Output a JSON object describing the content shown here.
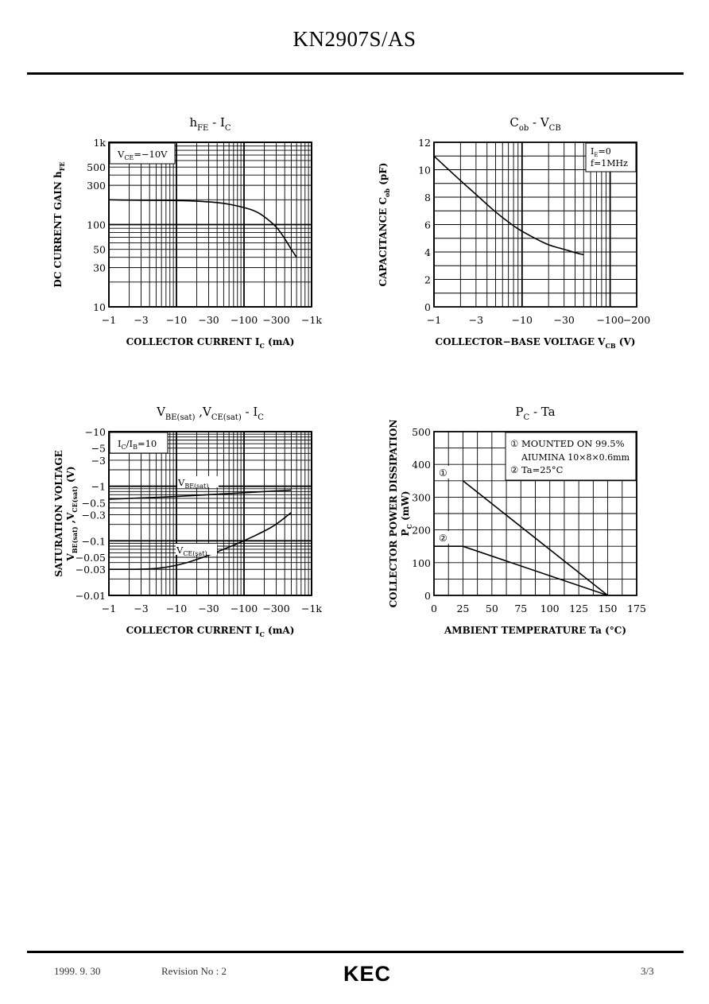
{
  "document": {
    "title": "KN2907S/AS",
    "footer": {
      "date": "1999. 9. 30",
      "revision": "Revision No : 2",
      "page": "3/3",
      "logo_text": "KEC"
    }
  },
  "chart_data": [
    {
      "id": "hfe",
      "type": "line",
      "title": {
        "main": "h",
        "sub": "FE",
        "rest": " - I",
        "sub2": "C"
      },
      "xlabel": {
        "main": "COLLECTOR  CURRENT  I",
        "sub": "C",
        "rest": "  (mA)"
      },
      "ylabel": {
        "main": "DC  CURRENT  GAIN  h",
        "sub": "FE",
        "rest": ""
      },
      "x_scale": "log",
      "y_scale": "log",
      "xlim": [
        -1,
        -1000
      ],
      "ylim": [
        10,
        1000
      ],
      "xticks": [
        {
          "v": 1,
          "l": "−1"
        },
        {
          "v": 3,
          "l": "−3"
        },
        {
          "v": 10,
          "l": "−10"
        },
        {
          "v": 30,
          "l": "−30"
        },
        {
          "v": 100,
          "l": "−100"
        },
        {
          "v": 300,
          "l": "−300"
        },
        {
          "v": 1000,
          "l": "−1k"
        }
      ],
      "yticks": [
        {
          "v": 10,
          "l": "10"
        },
        {
          "v": 30,
          "l": "30"
        },
        {
          "v": 50,
          "l": "50"
        },
        {
          "v": 100,
          "l": "100"
        },
        {
          "v": 300,
          "l": "300"
        },
        {
          "v": 500,
          "l": "500"
        },
        {
          "v": 1000,
          "l": "1k"
        }
      ],
      "annotations": [
        {
          "main": "V",
          "sub": "CE",
          "rest": "=−10V"
        }
      ],
      "series": [
        {
          "x": [
            1,
            2,
            5,
            10,
            20,
            50,
            100,
            150,
            200,
            300,
            400,
            500,
            600
          ],
          "y": [
            200,
            198,
            197,
            196,
            193,
            183,
            162,
            145,
            125,
            95,
            68,
            50,
            40
          ]
        }
      ]
    },
    {
      "id": "cob",
      "type": "line",
      "title": {
        "main": "C",
        "sub": "ob",
        "rest": " - V",
        "sub2": "CB"
      },
      "xlabel": {
        "main": "COLLECTOR−BASE  VOLTAGE  V",
        "sub": "CB",
        "rest": "  (V)"
      },
      "ylabel": {
        "main": "CAPACITANCE  C",
        "sub": "ob",
        "rest": "  (pF)"
      },
      "x_scale": "log",
      "y_scale": "linear",
      "xlim": [
        -1,
        -200
      ],
      "ylim": [
        0,
        12
      ],
      "xticks": [
        {
          "v": 1,
          "l": "−1"
        },
        {
          "v": 3,
          "l": "−3"
        },
        {
          "v": 10,
          "l": "−10"
        },
        {
          "v": 30,
          "l": "−30"
        },
        {
          "v": 100,
          "l": "−100"
        },
        {
          "v": 200,
          "l": "−200"
        }
      ],
      "yticks": [
        {
          "v": 0,
          "l": "0"
        },
        {
          "v": 2,
          "l": "2"
        },
        {
          "v": 4,
          "l": "4"
        },
        {
          "v": 6,
          "l": "6"
        },
        {
          "v": 8,
          "l": "8"
        },
        {
          "v": 10,
          "l": "10"
        },
        {
          "v": 12,
          "l": "12"
        }
      ],
      "annotations": [
        {
          "main": "I",
          "sub": "E",
          "rest": "=0"
        },
        {
          "main": "f=1MHz",
          "sub": "",
          "rest": ""
        }
      ],
      "series": [
        {
          "x": [
            1,
            2,
            3,
            5,
            8,
            10,
            15,
            20,
            30,
            40,
            50
          ],
          "y": [
            11.0,
            9.2,
            8.2,
            6.9,
            5.9,
            5.5,
            4.9,
            4.5,
            4.2,
            3.95,
            3.8
          ]
        }
      ]
    },
    {
      "id": "vsat",
      "type": "line",
      "title": {
        "main": "V",
        "sub": "BE(sat)",
        "rest": " ,V",
        "sub2": "CE(sat)",
        "rest2": "  -  I",
        "sub3": "C"
      },
      "xlabel": {
        "main": "COLLECTOR  CURRENT  I",
        "sub": "C",
        "rest": "  (mA)"
      },
      "ylabel_lines": [
        "SATURATION  VOLTAGE",
        "V_BE(sat) ,V_CE(sat)  (V)"
      ],
      "ylabel": {
        "line1": "SATURATION  VOLTAGE",
        "l2_v1": "V",
        "l2_s1": "BE(sat)",
        "l2_mid": " ,V",
        "l2_s2": "CE(sat)",
        "l2_end": "  (V)"
      },
      "x_scale": "log",
      "y_scale": "log",
      "xlim": [
        -1,
        -1000
      ],
      "ylim": [
        -0.01,
        -10
      ],
      "xticks": [
        {
          "v": 1,
          "l": "−1"
        },
        {
          "v": 3,
          "l": "−3"
        },
        {
          "v": 10,
          "l": "−10"
        },
        {
          "v": 30,
          "l": "−30"
        },
        {
          "v": 100,
          "l": "−100"
        },
        {
          "v": 300,
          "l": "−300"
        },
        {
          "v": 1000,
          "l": "−1k"
        }
      ],
      "yticks": [
        {
          "v": 0.01,
          "l": "−0.01"
        },
        {
          "v": 0.03,
          "l": "−0.03"
        },
        {
          "v": 0.05,
          "l": "−0.05"
        },
        {
          "v": 0.1,
          "l": "−0.1"
        },
        {
          "v": 0.3,
          "l": "−0.3"
        },
        {
          "v": 0.5,
          "l": "−0.5"
        },
        {
          "v": 1,
          "l": "−1"
        },
        {
          "v": 3,
          "l": "−3"
        },
        {
          "v": 5,
          "l": "−5"
        },
        {
          "v": 10,
          "l": "−10"
        }
      ],
      "annotations": [
        {
          "main": "I",
          "sub": "C",
          "rest": "/I",
          "sub2": "B",
          "rest2": "=10"
        }
      ],
      "series_labels": [
        {
          "main": "V",
          "sub": "BE(sat)"
        },
        {
          "main": "V",
          "sub": "CE(sat)"
        }
      ],
      "series": [
        {
          "x": [
            1,
            3,
            10,
            30,
            100,
            300,
            500
          ],
          "y": [
            0.58,
            0.61,
            0.65,
            0.7,
            0.76,
            0.82,
            0.85
          ]
        },
        {
          "x": [
            1,
            3,
            5,
            10,
            20,
            50,
            100,
            200,
            300,
            500
          ],
          "y": [
            0.03,
            0.03,
            0.031,
            0.035,
            0.045,
            0.07,
            0.1,
            0.15,
            0.2,
            0.33
          ]
        }
      ]
    },
    {
      "id": "pc",
      "type": "line",
      "title": {
        "main": "P",
        "sub": "C",
        "rest": "  -  Ta"
      },
      "xlabel": {
        "main": "AMBIENT  TEMPERATURE  Ta    (°C)",
        "sub": "",
        "rest": ""
      },
      "ylabel_lines": [
        "COLLECTOR  POWER  DISSIPATION",
        "P_C  (mW)"
      ],
      "ylabel": {
        "line1": "COLLECTOR  POWER  DISSIPATION",
        "l2_v1": "P",
        "l2_s1": "C",
        "l2_end": "  (mW)"
      },
      "x_scale": "linear",
      "y_scale": "linear",
      "xlim": [
        0,
        175
      ],
      "ylim": [
        0,
        500
      ],
      "xticks": [
        {
          "v": 0,
          "l": "0"
        },
        {
          "v": 25,
          "l": "25"
        },
        {
          "v": 50,
          "l": "50"
        },
        {
          "v": 75,
          "l": "75"
        },
        {
          "v": 100,
          "l": "100"
        },
        {
          "v": 125,
          "l": "125"
        },
        {
          "v": 150,
          "l": "150"
        },
        {
          "v": 175,
          "l": "175"
        }
      ],
      "yticks": [
        {
          "v": 0,
          "l": "0"
        },
        {
          "v": 100,
          "l": "100"
        },
        {
          "v": 200,
          "l": "200"
        },
        {
          "v": 300,
          "l": "300"
        },
        {
          "v": 400,
          "l": "400"
        },
        {
          "v": 500,
          "l": "500"
        }
      ],
      "legend_lines": [
        "① MOUNTED  ON  99.5%",
        "AIUMINA  10×8×0.6mm",
        "② Ta=25°C"
      ],
      "series_markers": [
        "①",
        "②"
      ],
      "series": [
        {
          "name": "①",
          "x": [
            25,
            150
          ],
          "y": [
            350,
            0
          ]
        },
        {
          "name": "②",
          "x": [
            0,
            25,
            150
          ],
          "y": [
            150,
            150,
            0
          ]
        }
      ]
    }
  ]
}
